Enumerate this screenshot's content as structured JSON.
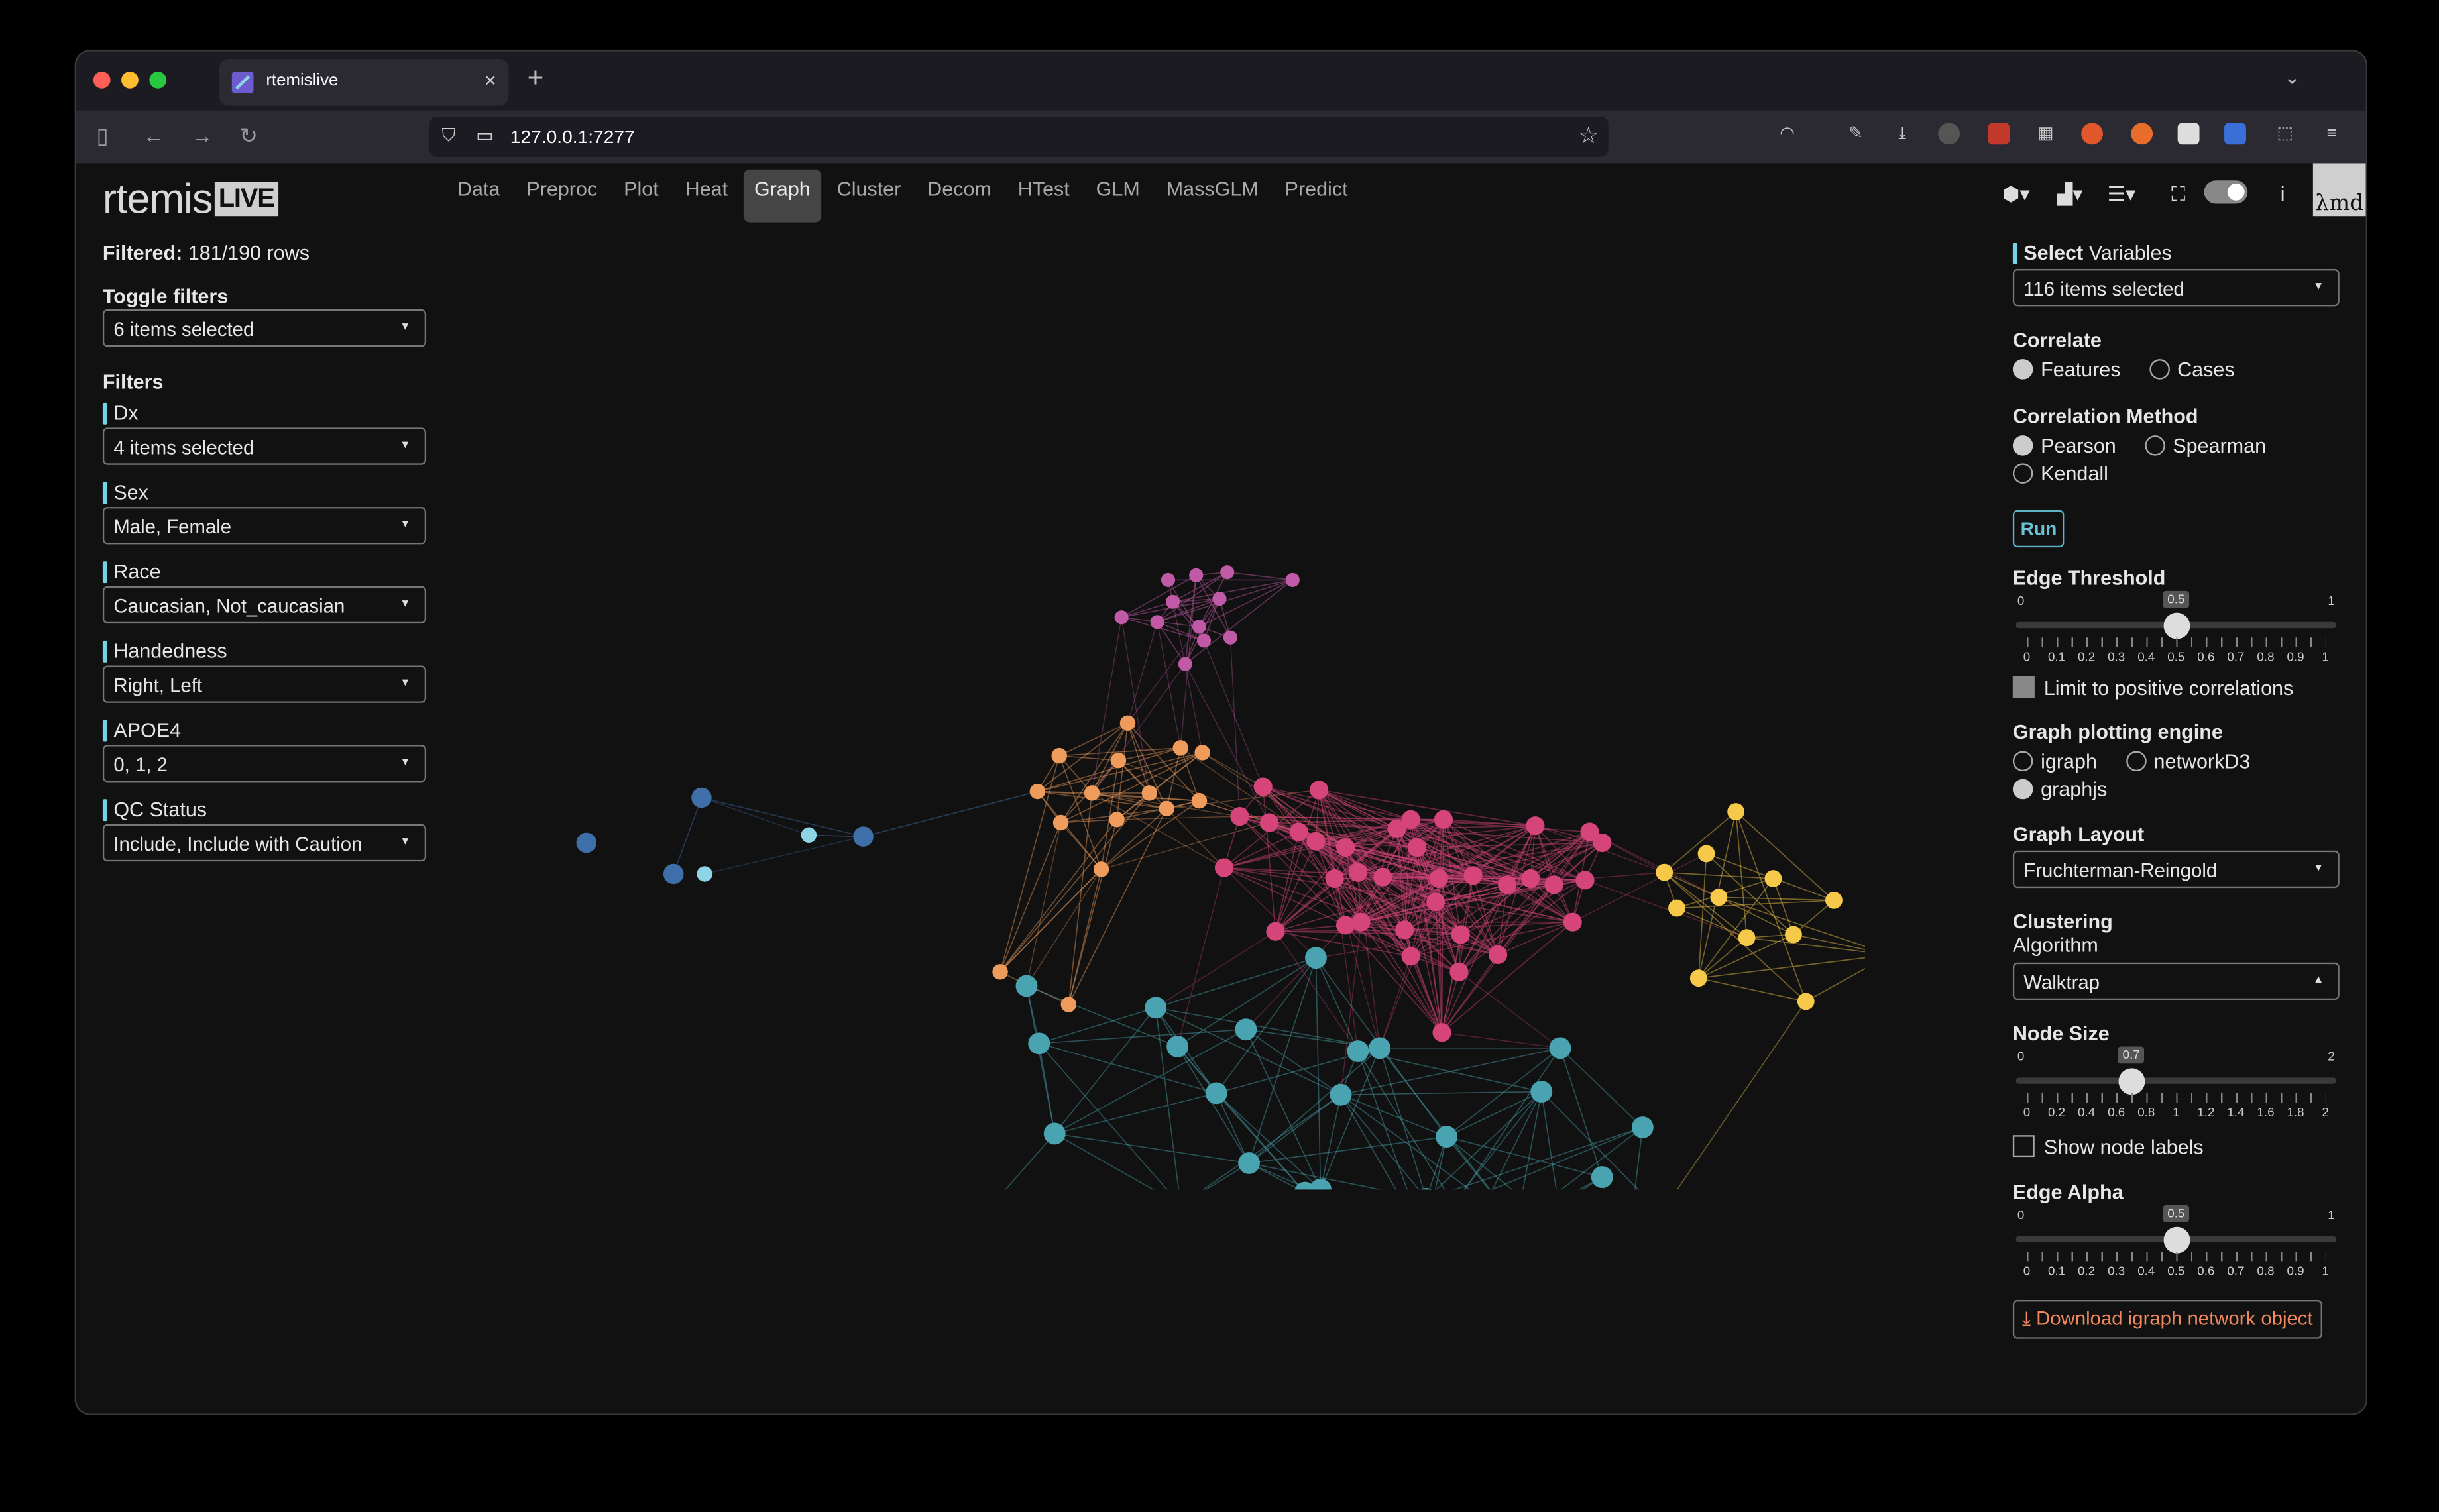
{
  "browser": {
    "tab_title": "rtemislive",
    "url": "127.0.0.1:7277"
  },
  "app": {
    "logo_main": "rtemis",
    "logo_badge": "LIVE",
    "nav": [
      "Data",
      "Preproc",
      "Plot",
      "Heat",
      "Graph",
      "Cluster",
      "Decom",
      "HTest",
      "GLM",
      "MassGLM",
      "Predict"
    ],
    "active_nav": "Graph",
    "avatar_text": "λmd"
  },
  "left": {
    "filtered_label": "Filtered:",
    "filtered_value": "181/190 rows",
    "toggle_filters_label": "Toggle filters",
    "toggle_filters_value": "6 items selected",
    "filters_heading": "Filters",
    "filters": [
      {
        "label": "Dx",
        "value": "4 items selected"
      },
      {
        "label": "Sex",
        "value": "Male, Female"
      },
      {
        "label": "Race",
        "value": "Caucasian, Not_caucasian"
      },
      {
        "label": "Handedness",
        "value": "Right, Left"
      },
      {
        "label": "APOE4",
        "value": "0, 1, 2"
      },
      {
        "label": "QC Status",
        "value": "Include, Include with Caution"
      }
    ]
  },
  "right": {
    "select_bold": "Select",
    "select_rest": "Variables",
    "variables_value": "116 items selected",
    "correlate_label": "Correlate",
    "correlate_options": [
      "Features",
      "Cases"
    ],
    "method_label": "Correlation Method",
    "method_options": [
      "Pearson",
      "Spearman",
      "Kendall"
    ],
    "run_label": "Run",
    "edge_threshold_label": "Edge Threshold",
    "edge_threshold": {
      "min": "0",
      "max": "1",
      "value": 0.5,
      "value_label": "0.5",
      "ticks": [
        "0",
        "0.1",
        "0.2",
        "0.3",
        "0.4",
        "0.5",
        "0.6",
        "0.7",
        "0.8",
        "0.9",
        "1"
      ]
    },
    "limit_positive_label": "Limit to positive correlations",
    "engine_label": "Graph plotting engine",
    "engine_options": [
      "igraph",
      "networkD3",
      "graphjs"
    ],
    "layout_label": "Graph Layout",
    "layout_value": "Fruchterman-Reingold",
    "clustering_label": "Clustering",
    "algorithm_label": "Algorithm",
    "algorithm_value": "Walktrap",
    "node_size_label": "Node Size",
    "node_size": {
      "min": "0",
      "max": "2",
      "value": 0.7,
      "value_label": "0.7",
      "ticks": [
        "0",
        "0.2",
        "0.4",
        "0.6",
        "0.8",
        "1",
        "1.2",
        "1.4",
        "1.6",
        "1.8",
        "2"
      ]
    },
    "show_labels_label": "Show node labels",
    "edge_alpha_label": "Edge Alpha",
    "edge_alpha": {
      "min": "0",
      "max": "1",
      "value": 0.5,
      "value_label": "0.5",
      "ticks": [
        "0",
        "0.1",
        "0.2",
        "0.3",
        "0.4",
        "0.5",
        "0.6",
        "0.7",
        "0.8",
        "0.9",
        "1"
      ]
    },
    "download_label": "Download igraph network object"
  },
  "colors": {
    "pink": "#c05aa6",
    "orange": "#ee9b5b",
    "crimson": "#d6457a",
    "yellow": "#f6c94a",
    "teal": "#4aa3b0",
    "blue": "#3f6fa8",
    "lightblue": "#8fd4e6"
  }
}
